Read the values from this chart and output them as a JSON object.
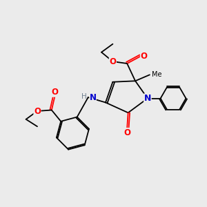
{
  "background_color": "#ebebeb",
  "atom_colors": {
    "C": "#000000",
    "N": "#0000cd",
    "O": "#ff0000",
    "H": "#708090"
  },
  "figsize": [
    3.0,
    3.0
  ],
  "dpi": 100,
  "lw": 1.3
}
